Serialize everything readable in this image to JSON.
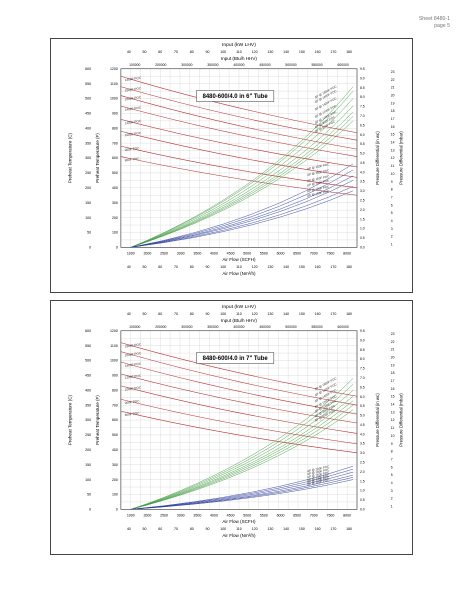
{
  "header": {
    "sheet": "Sheet 8480-1",
    "page": "page 5"
  },
  "chart_data": [
    {
      "type": "line",
      "title": "8480-600/4.0 in 6\" Tube",
      "top_label1": "Input (kW LHV)",
      "top_ticks1": [
        "40",
        "50",
        "60",
        "70",
        "80",
        "90",
        "100",
        "110",
        "120",
        "130",
        "140",
        "150",
        "160",
        "170",
        "180"
      ],
      "top_label2": "Input (Btu/h HHV)",
      "top_ticks2": [
        "100000",
        "200000",
        "300000",
        "350000",
        "400000",
        "450000",
        "500000",
        "550000",
        "600000"
      ],
      "xlabel": "Air Flow (SCFH)",
      "x_ticks": [
        "1000",
        "2000",
        "2500",
        "3000",
        "3500",
        "4000",
        "4500",
        "5000",
        "5500",
        "6000",
        "6500",
        "7000",
        "7500",
        "8000"
      ],
      "bottom_label": "Air Flow (Nm³/h)",
      "bottom_ticks": [
        "40",
        "50",
        "60",
        "70",
        "80",
        "90",
        "100",
        "110",
        "120",
        "130",
        "140",
        "150",
        "160",
        "170",
        "180"
      ],
      "left_label1": "Preheat Temperature (C)",
      "left_ticks1": [
        "0",
        "50",
        "100",
        "150",
        "200",
        "250",
        "300",
        "350",
        "400",
        "450",
        "500",
        "550",
        "600"
      ],
      "left_label2": "Preheat Temperature (F)",
      "left_ticks2": [
        "0",
        "100",
        "200",
        "300",
        "400",
        "500",
        "600",
        "700",
        "800",
        "900",
        "1000",
        "1100",
        "1200"
      ],
      "ylim": [
        0,
        1200
      ],
      "right_label1": "Pressure Differential (in wc)",
      "right_ticks1": [
        "0.0",
        "0.5",
        "1.0",
        "1.5",
        "2.0",
        "2.5",
        "3.0",
        "3.5",
        "4.0",
        "4.5",
        "5.0",
        "5.5",
        "6.0",
        "6.5",
        "7.0",
        "7.5",
        "8.0",
        "8.5",
        "9.0",
        "9.5"
      ],
      "right_label2": "Pressure Differential (mbar)",
      "right_ticks2": [
        "1",
        "2",
        "3",
        "4",
        "5",
        "6",
        "7",
        "8",
        "9",
        "10",
        "11",
        "12",
        "13",
        "14",
        "15",
        "16",
        "17",
        "18",
        "19",
        "20",
        "21",
        "22",
        "23"
      ],
      "red_series": [
        {
          "name": "1400F POC",
          "y0": 1150,
          "y1": 770
        },
        {
          "name": "1600F POC",
          "y0": 1080,
          "y1": 720
        },
        {
          "name": "1800F POC",
          "y0": 1020,
          "y1": 660
        },
        {
          "name": "1400F POC",
          "y0": 950,
          "y1": 610
        },
        {
          "name": "1200F POC",
          "y0": 860,
          "y1": 540
        },
        {
          "name": "1000F POC",
          "y0": 780,
          "y1": 470
        },
        {
          "name": "900F POC",
          "y0": 680,
          "y1": 400
        },
        {
          "name": "800F POC",
          "y0": 610,
          "y1": 350
        }
      ],
      "green_series": [
        {
          "name": "ΔP @ 1800F POC",
          "y1": 1080
        },
        {
          "name": "ΔP @ 1600F POC",
          "y1": 1050
        },
        {
          "name": "ΔP @ 1400F POC",
          "y1": 1000
        },
        {
          "name": "ΔP @ 1200F POC",
          "y1": 950
        },
        {
          "name": "ΔP @ 1000F POC",
          "y1": 910
        },
        {
          "name": "ΔP @ 800F POC",
          "y1": 880
        },
        {
          "name": "ΔP @ 600F POC",
          "y1": 850
        }
      ],
      "blue_series": [
        {
          "name": "ΔP @ 200F POC",
          "y1": 560
        },
        {
          "name": "ΔP @ 180F POC",
          "y1": 520
        },
        {
          "name": "ΔP @ 160F POC",
          "y1": 480
        },
        {
          "name": "ΔP @ 140F POC",
          "y1": 450
        },
        {
          "name": "ΔP @ 120F POC",
          "y1": 410
        },
        {
          "name": "ΔP @ 100F POC",
          "y1": 380
        }
      ],
      "colors": {
        "red": "#b52a2a",
        "green": "#3a9a3a",
        "blue": "#2a3a9a",
        "grid": "#c8c8c8"
      }
    },
    {
      "type": "line",
      "title": "8480-600/4.0 in 7\" Tube",
      "top_label1": "Input (kW LHV)",
      "top_ticks1": [
        "40",
        "50",
        "60",
        "70",
        "80",
        "90",
        "100",
        "110",
        "120",
        "130",
        "140",
        "150",
        "160",
        "170",
        "180"
      ],
      "top_label2": "Input (Btu/h HHV)",
      "top_ticks2": [
        "100000",
        "200000",
        "300000",
        "350000",
        "400000",
        "450000",
        "500000",
        "550000",
        "600000"
      ],
      "xlabel": "Air Flow (SCFH)",
      "x_ticks": [
        "1000",
        "2000",
        "2500",
        "3000",
        "3500",
        "4000",
        "4500",
        "5000",
        "5500",
        "6000",
        "6500",
        "7000",
        "7500",
        "8000"
      ],
      "bottom_label": "Air Flow (Nm³/h)",
      "bottom_ticks": [
        "40",
        "50",
        "60",
        "70",
        "80",
        "90",
        "100",
        "110",
        "120",
        "130",
        "140",
        "150",
        "160",
        "170",
        "180"
      ],
      "left_label1": "Preheat Temperature (C)",
      "left_ticks1": [
        "0",
        "50",
        "100",
        "150",
        "200",
        "250",
        "300",
        "350",
        "400",
        "450",
        "500",
        "550",
        "600"
      ],
      "left_label2": "Preheat Temperature (F)",
      "left_ticks2": [
        "0",
        "100",
        "200",
        "300",
        "400",
        "500",
        "600",
        "700",
        "800",
        "900",
        "1000",
        "1100",
        "1200"
      ],
      "ylim": [
        0,
        1200
      ],
      "right_label1": "Pressure Differential (in wc)",
      "right_ticks1": [
        "0.0",
        "0.5",
        "1.0",
        "1.5",
        "2.0",
        "2.5",
        "3.0",
        "3.5",
        "4.0",
        "4.5",
        "5.0",
        "5.5",
        "6.0",
        "6.5",
        "7.0",
        "7.5",
        "8.0",
        "8.5",
        "9.0",
        "9.5"
      ],
      "right_label2": "Pressure Differential (mbar)",
      "right_ticks2": [
        "1",
        "2",
        "3",
        "4",
        "5",
        "6",
        "7",
        "8",
        "9",
        "10",
        "11",
        "12",
        "13",
        "14",
        "15",
        "16",
        "17",
        "18",
        "19",
        "20",
        "21",
        "22",
        "23"
      ],
      "red_series": [
        {
          "name": "1800F POC",
          "y0": 1120,
          "y1": 760
        },
        {
          "name": "1600F POC",
          "y0": 1060,
          "y1": 700
        },
        {
          "name": "1400F POC",
          "y0": 990,
          "y1": 640
        },
        {
          "name": "1200F POC",
          "y0": 910,
          "y1": 580
        },
        {
          "name": "1000F POC",
          "y0": 830,
          "y1": 510
        },
        {
          "name": "900F POC",
          "y0": 740,
          "y1": 440
        },
        {
          "name": "800F POC",
          "y0": 660,
          "y1": 380
        }
      ],
      "green_series": [
        {
          "name": "ΔP @ 1800F POC",
          "y1": 880
        },
        {
          "name": "ΔP @ 1600F POC",
          "y1": 840
        },
        {
          "name": "ΔP @ 1400F POC",
          "y1": 800
        },
        {
          "name": "ΔP @ 1200F POC",
          "y1": 760
        },
        {
          "name": "ΔP @ 1000F POC",
          "y1": 730
        },
        {
          "name": "ΔP @ 800F POC",
          "y1": 700
        },
        {
          "name": "ΔP @ 600F POC",
          "y1": 670
        }
      ],
      "blue_series": [
        {
          "name": "ΔP @ 200F POC",
          "y1": 290
        },
        {
          "name": "ΔP @ 180F POC",
          "y1": 270
        },
        {
          "name": "ΔP @ 160F POC",
          "y1": 250
        },
        {
          "name": "ΔP @ 140F POC",
          "y1": 230
        },
        {
          "name": "ΔP @ 120F POC",
          "y1": 215
        },
        {
          "name": "ΔP @ 100F POC",
          "y1": 200
        }
      ],
      "colors": {
        "red": "#b52a2a",
        "green": "#3a9a3a",
        "blue": "#2a3a9a",
        "grid": "#c8c8c8"
      }
    }
  ]
}
